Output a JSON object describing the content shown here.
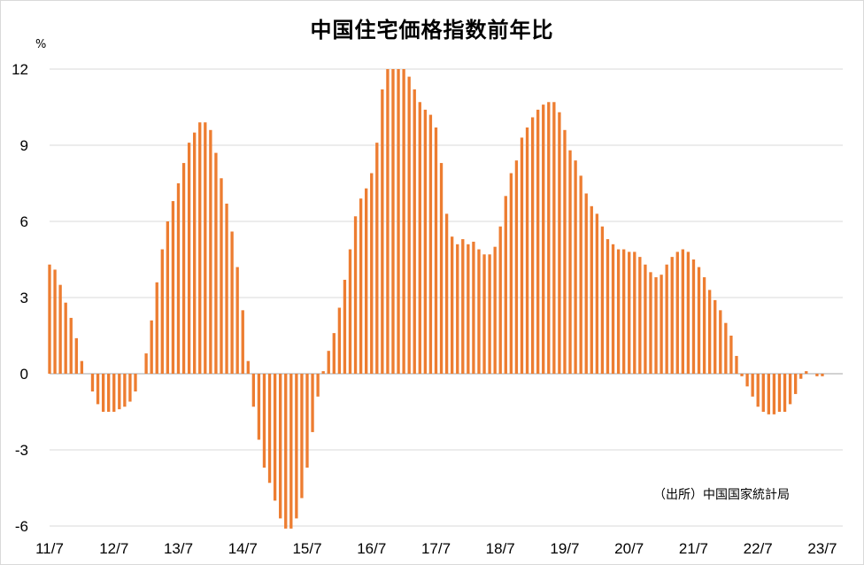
{
  "chart_data": {
    "type": "bar",
    "title": "中国住宅価格指数前年比",
    "unit_label": "%",
    "source": "（出所）中国国家統計局",
    "ylim": [
      -6,
      12
    ],
    "yticks": [
      12,
      9,
      6,
      3,
      0,
      -3,
      -6
    ],
    "xticks": [
      {
        "label": "11/7",
        "index": 0
      },
      {
        "label": "12/7",
        "index": 12
      },
      {
        "label": "13/7",
        "index": 24
      },
      {
        "label": "14/7",
        "index": 36
      },
      {
        "label": "15/7",
        "index": 48
      },
      {
        "label": "16/7",
        "index": 60
      },
      {
        "label": "17/7",
        "index": 72
      },
      {
        "label": "18/7",
        "index": 84
      },
      {
        "label": "19/7",
        "index": 96
      },
      {
        "label": "20/7",
        "index": 108
      },
      {
        "label": "21/7",
        "index": 120
      },
      {
        "label": "22/7",
        "index": 132
      },
      {
        "label": "23/7",
        "index": 144
      }
    ],
    "bar_color": "#ed7d31",
    "grid": true,
    "values": [
      4.3,
      4.1,
      3.5,
      2.8,
      2.2,
      1.4,
      0.5,
      0,
      -0.7,
      -1.2,
      -1.5,
      -1.5,
      -1.5,
      -1.4,
      -1.3,
      -1.1,
      -0.7,
      0,
      0.8,
      2.1,
      3.6,
      4.9,
      6.0,
      6.8,
      7.5,
      8.3,
      9.1,
      9.5,
      9.9,
      9.9,
      9.6,
      8.7,
      7.7,
      6.7,
      5.6,
      4.2,
      2.5,
      0.5,
      -1.3,
      -2.6,
      -3.7,
      -4.3,
      -5.0,
      -5.7,
      -6.1,
      -6.1,
      -5.7,
      -4.9,
      -3.7,
      -2.3,
      -0.9,
      0.1,
      0.9,
      1.6,
      2.6,
      3.7,
      4.9,
      6.2,
      6.9,
      7.3,
      7.9,
      9.1,
      11.2,
      12.0,
      12.0,
      12.0,
      12.0,
      11.7,
      11.2,
      10.7,
      10.4,
      10.2,
      9.7,
      8.3,
      6.3,
      5.4,
      5.1,
      5.3,
      5.1,
      5.2,
      4.9,
      4.7,
      4.7,
      5.0,
      5.8,
      7.0,
      7.9,
      8.4,
      9.3,
      9.7,
      10.1,
      10.4,
      10.6,
      10.7,
      10.7,
      10.3,
      9.6,
      8.8,
      8.4,
      7.8,
      7.1,
      6.6,
      6.3,
      5.8,
      5.3,
      5.1,
      4.9,
      4.9,
      4.8,
      4.8,
      4.6,
      4.3,
      4.0,
      3.8,
      3.9,
      4.3,
      4.6,
      4.8,
      4.9,
      4.8,
      4.5,
      4.2,
      3.8,
      3.3,
      2.9,
      2.5,
      2.0,
      1.5,
      0.7,
      -0.1,
      -0.5,
      -0.9,
      -1.3,
      -1.5,
      -1.6,
      -1.6,
      -1.5,
      -1.5,
      -1.2,
      -0.8,
      -0.2,
      0.1,
      0,
      -0.1,
      -0.1
    ]
  }
}
